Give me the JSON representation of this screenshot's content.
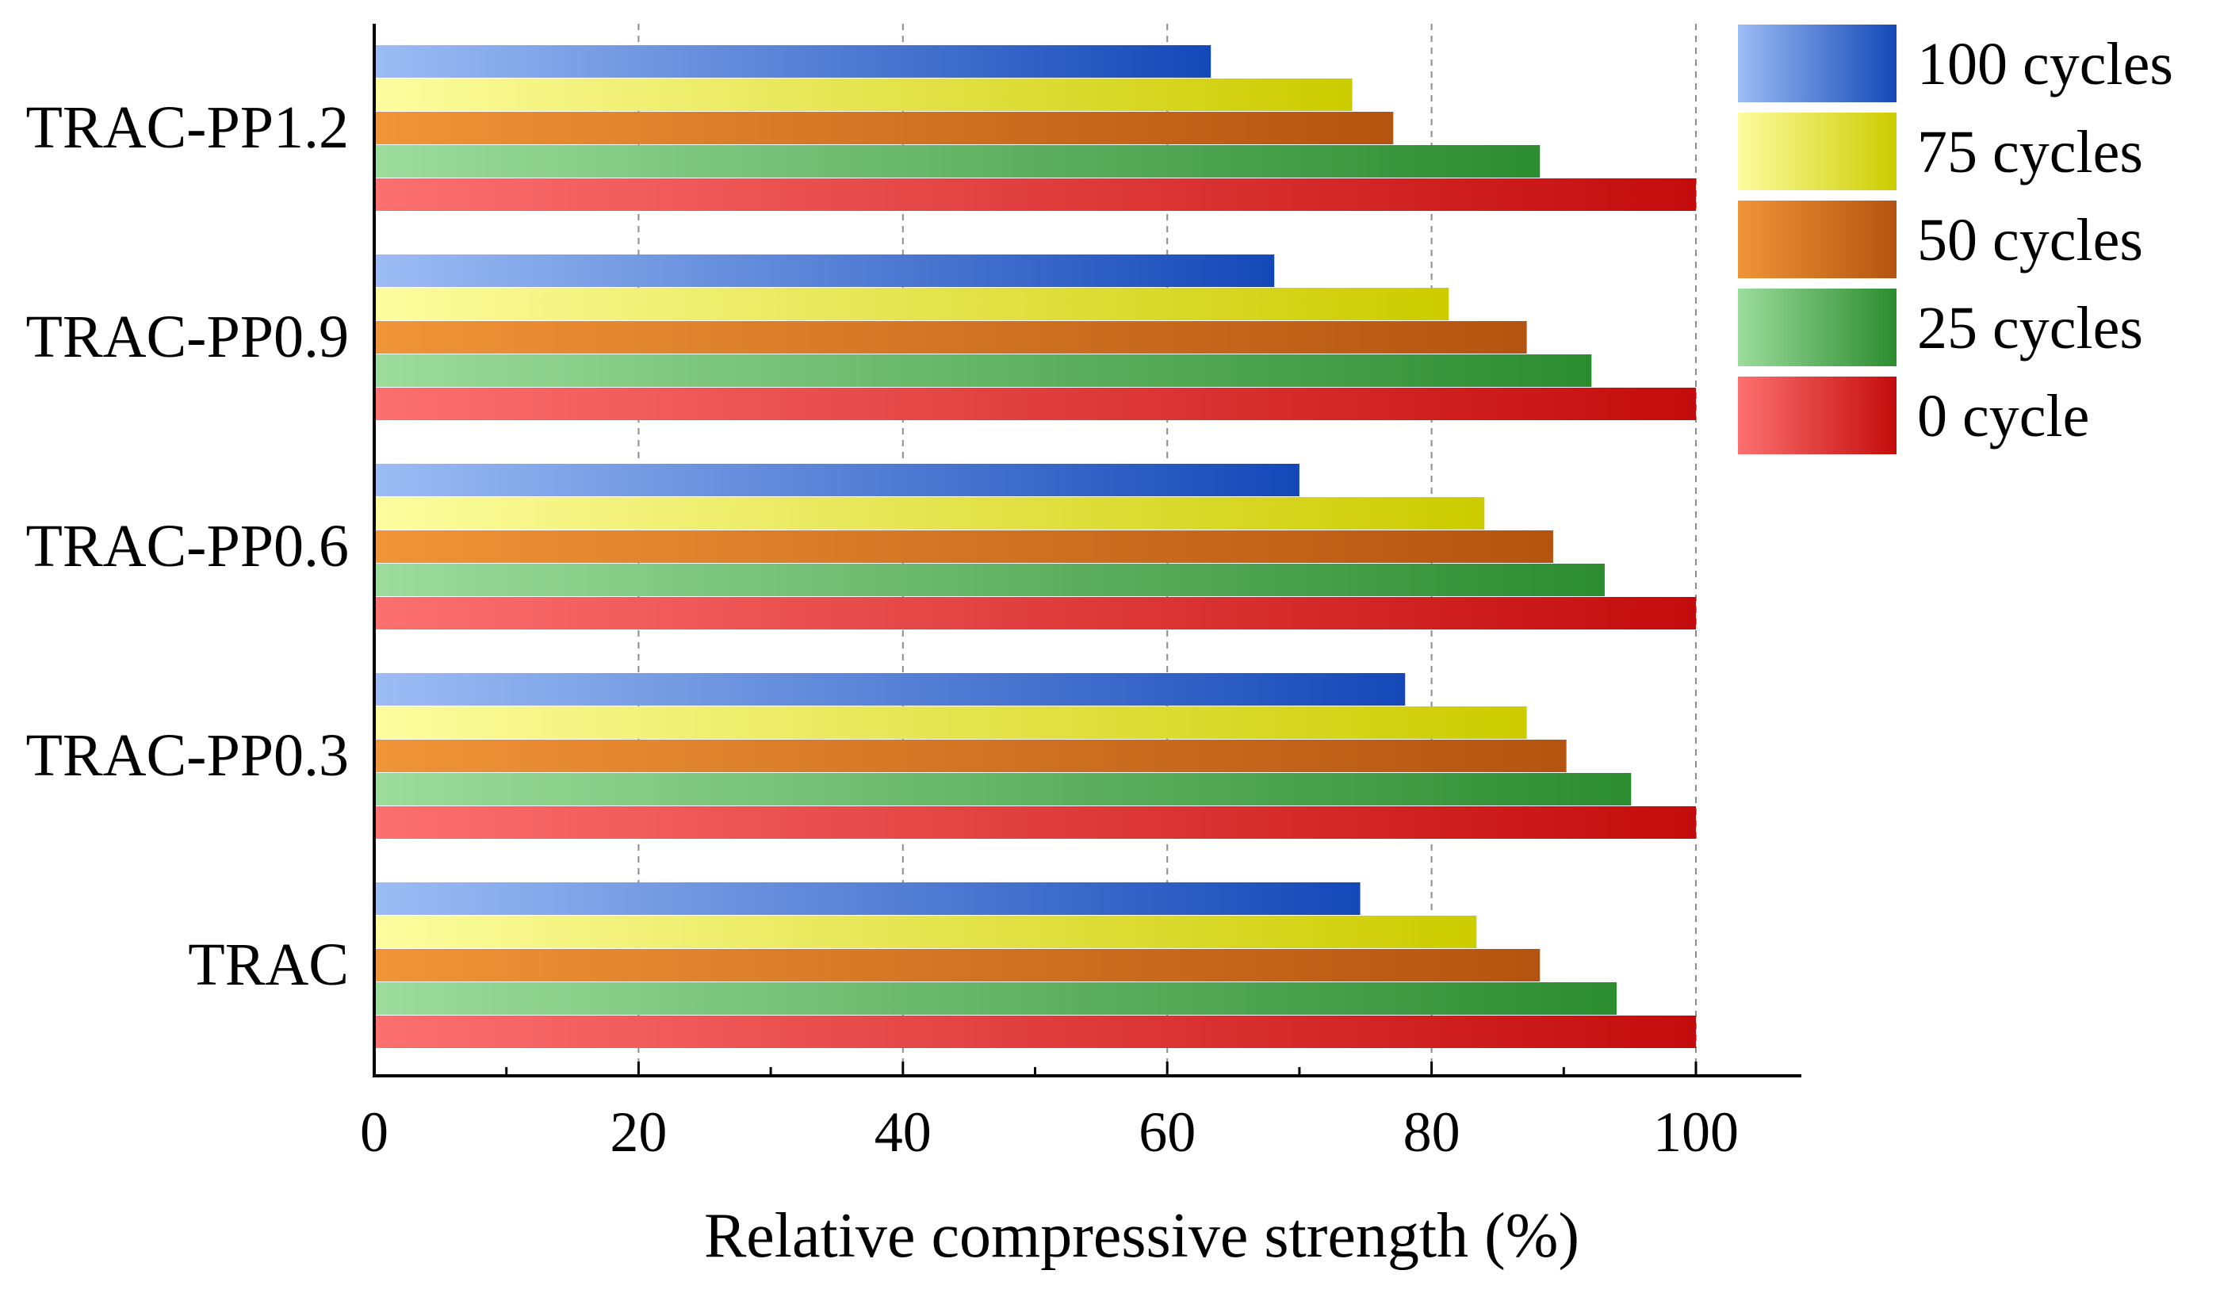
{
  "chart_data": {
    "type": "bar",
    "orientation": "horizontal",
    "categories": [
      "TRAC-PP1.2",
      "TRAC-PP0.9",
      "TRAC-PP0.6",
      "TRAC-PP0.3",
      "TRAC"
    ],
    "series": [
      {
        "name": "100 cycles",
        "values": [
          63.3,
          68.1,
          70.0,
          78.0,
          74.6
        ],
        "color_light": "#9cbcf4",
        "color_dark": "#1448b8"
      },
      {
        "name": "75 cycles",
        "values": [
          74.0,
          81.3,
          84.0,
          87.2,
          83.4
        ],
        "color_light": "#fdfda0",
        "color_dark": "#cccc00"
      },
      {
        "name": "50 cycles",
        "values": [
          77.1,
          87.2,
          89.2,
          90.2,
          88.2
        ],
        "color_light": "#f09438",
        "color_dark": "#b45410"
      },
      {
        "name": "25 cycles",
        "values": [
          88.2,
          92.1,
          93.1,
          95.1,
          94.0
        ],
        "color_light": "#9cdc9c",
        "color_dark": "#2c8c30"
      },
      {
        "name": "0 cycle",
        "values": [
          100,
          100,
          100,
          100,
          100
        ],
        "color_light": "#fc7070",
        "color_dark": "#c40c0c"
      }
    ],
    "xlabel": "Relative compressive strength (%)",
    "ylabel": "",
    "xlim": [
      0,
      108
    ],
    "x_ticks": [
      0,
      20,
      40,
      60,
      80,
      100
    ],
    "x_tick_labels": [
      "0",
      "20",
      "40",
      "60",
      "80",
      "100"
    ],
    "grid": "vertical dashed at 20, 40, 60, 80, 100",
    "legend_position": "top-right",
    "legend_order": [
      "100 cycles",
      "75 cycles",
      "50 cycles",
      "25 cycles",
      "0 cycle"
    ]
  }
}
